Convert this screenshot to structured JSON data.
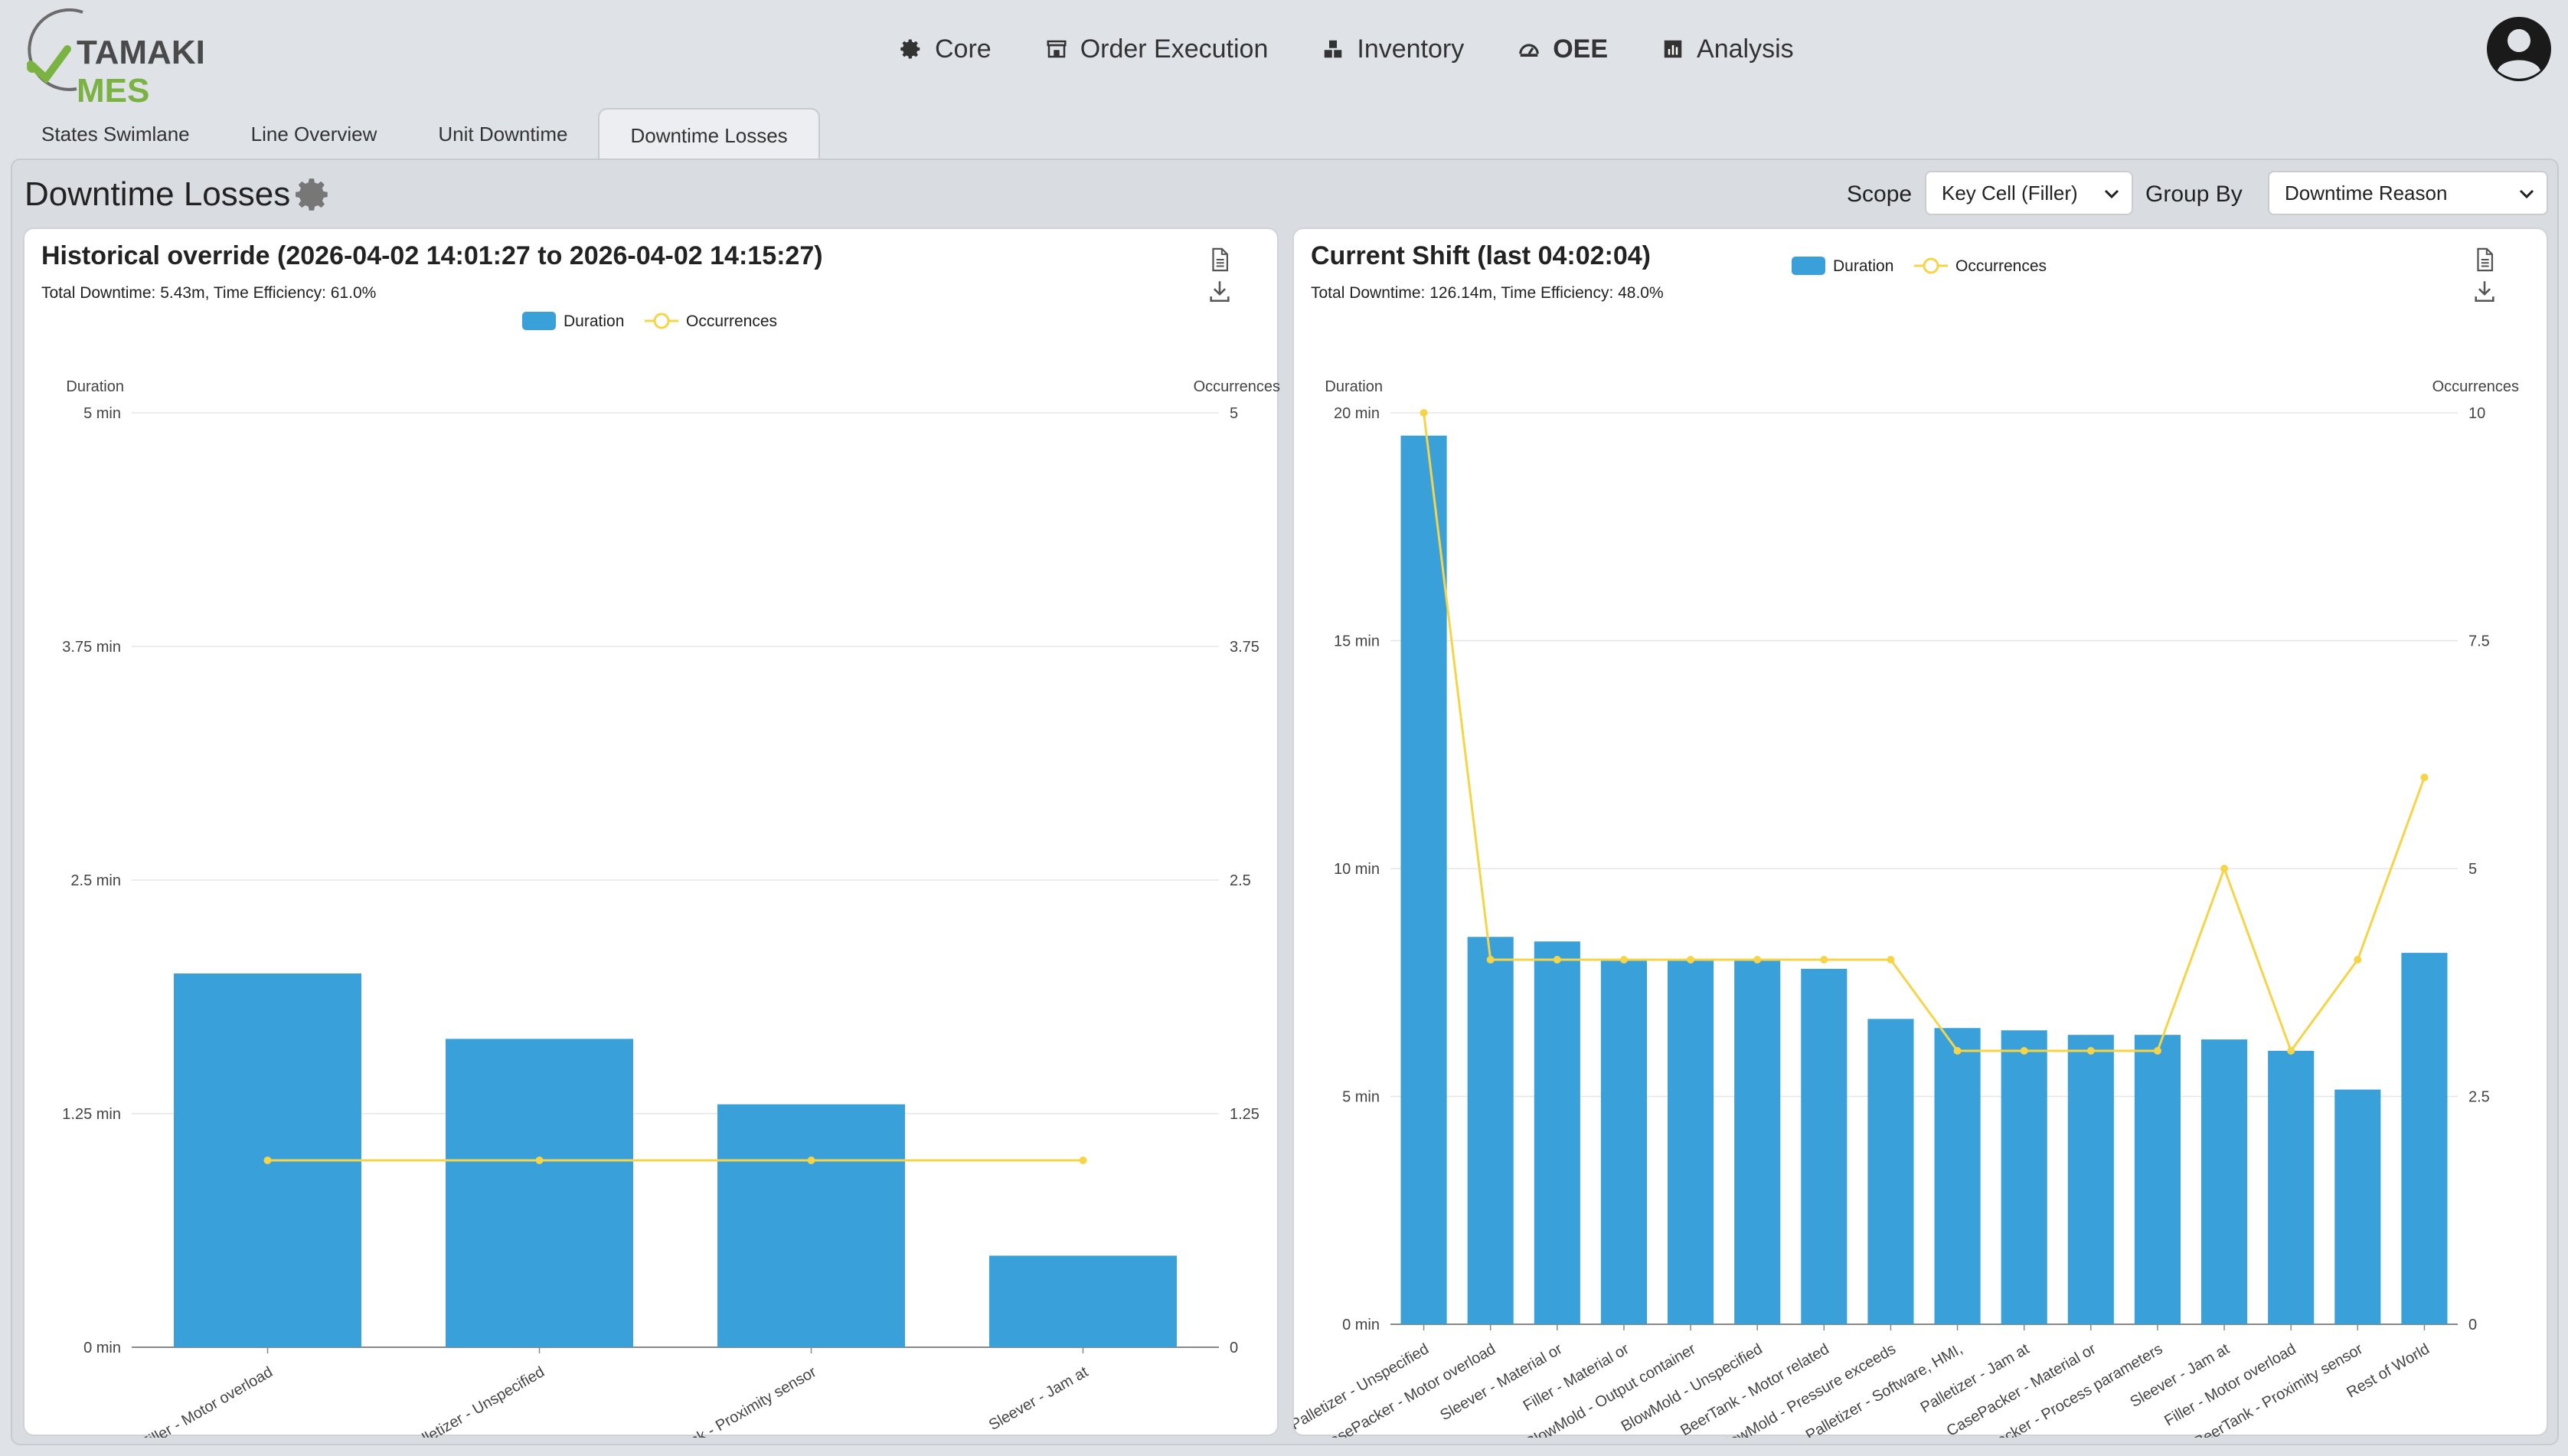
{
  "app": {
    "logo_part1": "TAMAKI",
    "logo_part2": "MES"
  },
  "nav": [
    {
      "label": "Core",
      "icon": "gear-icon"
    },
    {
      "label": "Order Execution",
      "icon": "store-icon"
    },
    {
      "label": "Inventory",
      "icon": "boxes-icon"
    },
    {
      "label": "OEE",
      "icon": "gauge-icon"
    },
    {
      "label": "Analysis",
      "icon": "bar-chart-icon"
    }
  ],
  "tabs": [
    {
      "label": "States Swimlane"
    },
    {
      "label": "Line Overview"
    },
    {
      "label": "Unit Downtime"
    },
    {
      "label": "Downtime Losses"
    }
  ],
  "page": {
    "title": "Downtime Losses",
    "scope_label": "Scope",
    "scope_value": "Key Cell (Filler)",
    "groupby_label": "Group By",
    "groupby_value": "Downtime Reason"
  },
  "colors": {
    "bar": "#3aa0da",
    "line": "#f5d547",
    "accent": "#7bb342"
  },
  "chart_data": [
    {
      "type": "bar",
      "title": "Historical override (2026-04-02 14:01:27 to 2026-04-02 14:15:27)",
      "subtitle": "Total Downtime: 5.43m, Time Efficiency: 61.0%",
      "ylabel": "Duration",
      "y2label": "Occurrences",
      "legend": [
        "Duration",
        "Occurrences"
      ],
      "legend_position": "top-center",
      "ylim": [
        0,
        5
      ],
      "y2lim": [
        0,
        5
      ],
      "yticks": [
        "0 min",
        "1.25 min",
        "2.5 min",
        "3.75 min",
        "5 min"
      ],
      "y2ticks": [
        "0",
        "1.25",
        "2.5",
        "3.75",
        "5"
      ],
      "categories": [
        "Filler - Motor overload",
        "Palletizer - Unspecified",
        "BeerTank - Proximity sensor",
        "Sleever - Jam at"
      ],
      "series": [
        {
          "name": "Duration",
          "type": "bar",
          "values": [
            2.0,
            1.65,
            1.3,
            0.49
          ]
        },
        {
          "name": "Occurrences",
          "type": "line",
          "values": [
            1,
            1,
            1,
            1
          ]
        }
      ]
    },
    {
      "type": "bar",
      "title": "Current Shift (last 04:02:04)",
      "subtitle": "Total Downtime: 126.14m, Time Efficiency: 48.0%",
      "ylabel": "Duration",
      "y2label": "Occurrences",
      "legend": [
        "Duration",
        "Occurrences"
      ],
      "legend_position": "top-center",
      "ylim": [
        0,
        20
      ],
      "y2lim": [
        0,
        10
      ],
      "yticks": [
        "0 min",
        "5 min",
        "10 min",
        "15 min",
        "20 min"
      ],
      "y2ticks": [
        "0",
        "2.5",
        "5",
        "7.5",
        "10"
      ],
      "categories": [
        "Palletizer - Unspecified",
        "CasePacker - Motor overload",
        "Sleever - Material or",
        "Filler - Material or",
        "BlowMold - Output container",
        "BlowMold - Unspecified",
        "BeerTank - Motor related",
        "BlowMold - Pressure exceeds",
        "Palletizer - Software, HMI,",
        "Palletizer - Jam at",
        "CasePacker - Material or",
        "CasePacker - Process parameters",
        "Sleever - Jam at",
        "Filler - Motor overload",
        "BeerTank - Proximity sensor",
        "Rest of World"
      ],
      "series": [
        {
          "name": "Duration",
          "type": "bar",
          "values": [
            19.5,
            8.5,
            8.4,
            8.0,
            8.0,
            8.0,
            7.8,
            6.7,
            6.5,
            6.45,
            6.35,
            6.35,
            6.25,
            6.0,
            5.15,
            8.15
          ]
        },
        {
          "name": "Occurrences",
          "type": "line",
          "values": [
            10,
            4,
            4,
            4,
            4,
            4,
            4,
            4,
            3,
            3,
            3,
            3,
            5,
            3,
            4,
            6
          ]
        }
      ]
    }
  ]
}
